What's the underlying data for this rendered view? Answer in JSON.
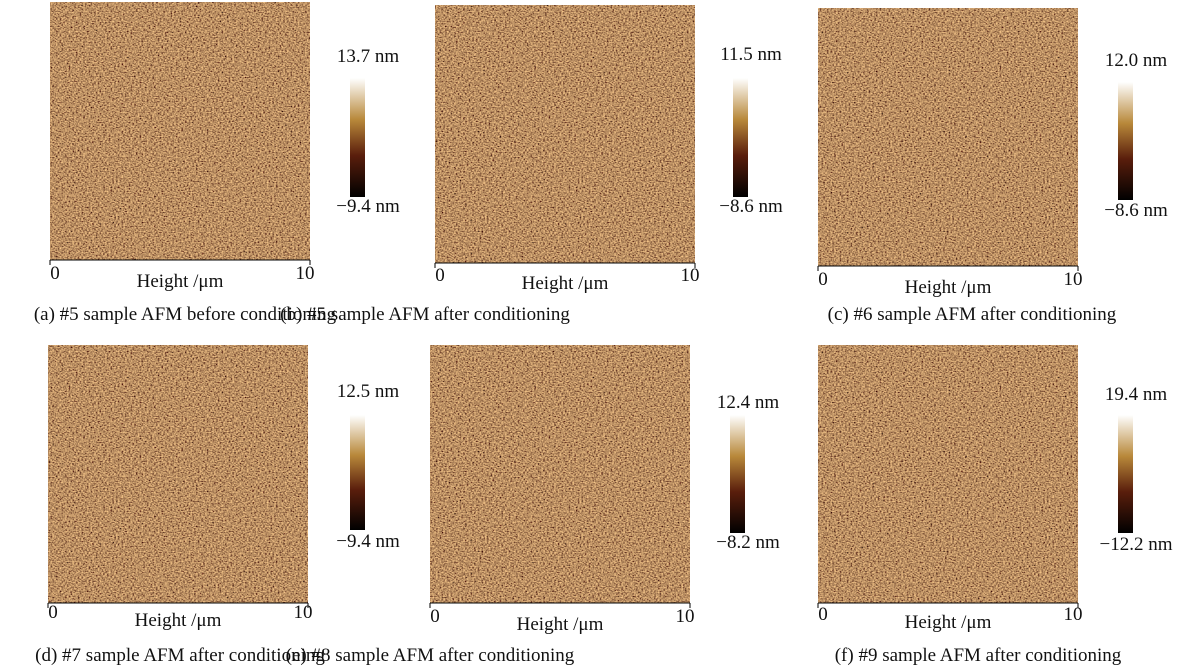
{
  "panels": [
    {
      "caption": "(a) #5 sample AFM before conditioning",
      "scale_max": "13.7 nm",
      "scale_min": "−9.4 nm",
      "x_start": "0",
      "x_end": "10",
      "axis_label": "Height /μm"
    },
    {
      "caption": "(b) #5 sample AFM after conditioning",
      "scale_max": "11.5 nm",
      "scale_min": "−8.6 nm",
      "x_start": "0",
      "x_end": "10",
      "axis_label": "Height /μm"
    },
    {
      "caption": "(c) #6 sample AFM after conditioning",
      "scale_max": "12.0 nm",
      "scale_min": "−8.6 nm",
      "x_start": "0",
      "x_end": "10",
      "axis_label": "Height /μm"
    },
    {
      "caption": "(d) #7 sample AFM after conditioning",
      "scale_max": "12.5 nm",
      "scale_min": "−9.4 nm",
      "x_start": "0",
      "x_end": "10",
      "axis_label": "Height /μm"
    },
    {
      "caption": "(e) #8 sample AFM after conditioning",
      "scale_max": "12.4 nm",
      "scale_min": "−8.2 nm",
      "x_start": "0",
      "x_end": "10",
      "axis_label": "Height /μm"
    },
    {
      "caption": "(f) #9 sample AFM after conditioning",
      "scale_max": "19.4 nm",
      "scale_min": "−12.2 nm",
      "x_start": "0",
      "x_end": "10",
      "axis_label": "Height /μm"
    }
  ]
}
